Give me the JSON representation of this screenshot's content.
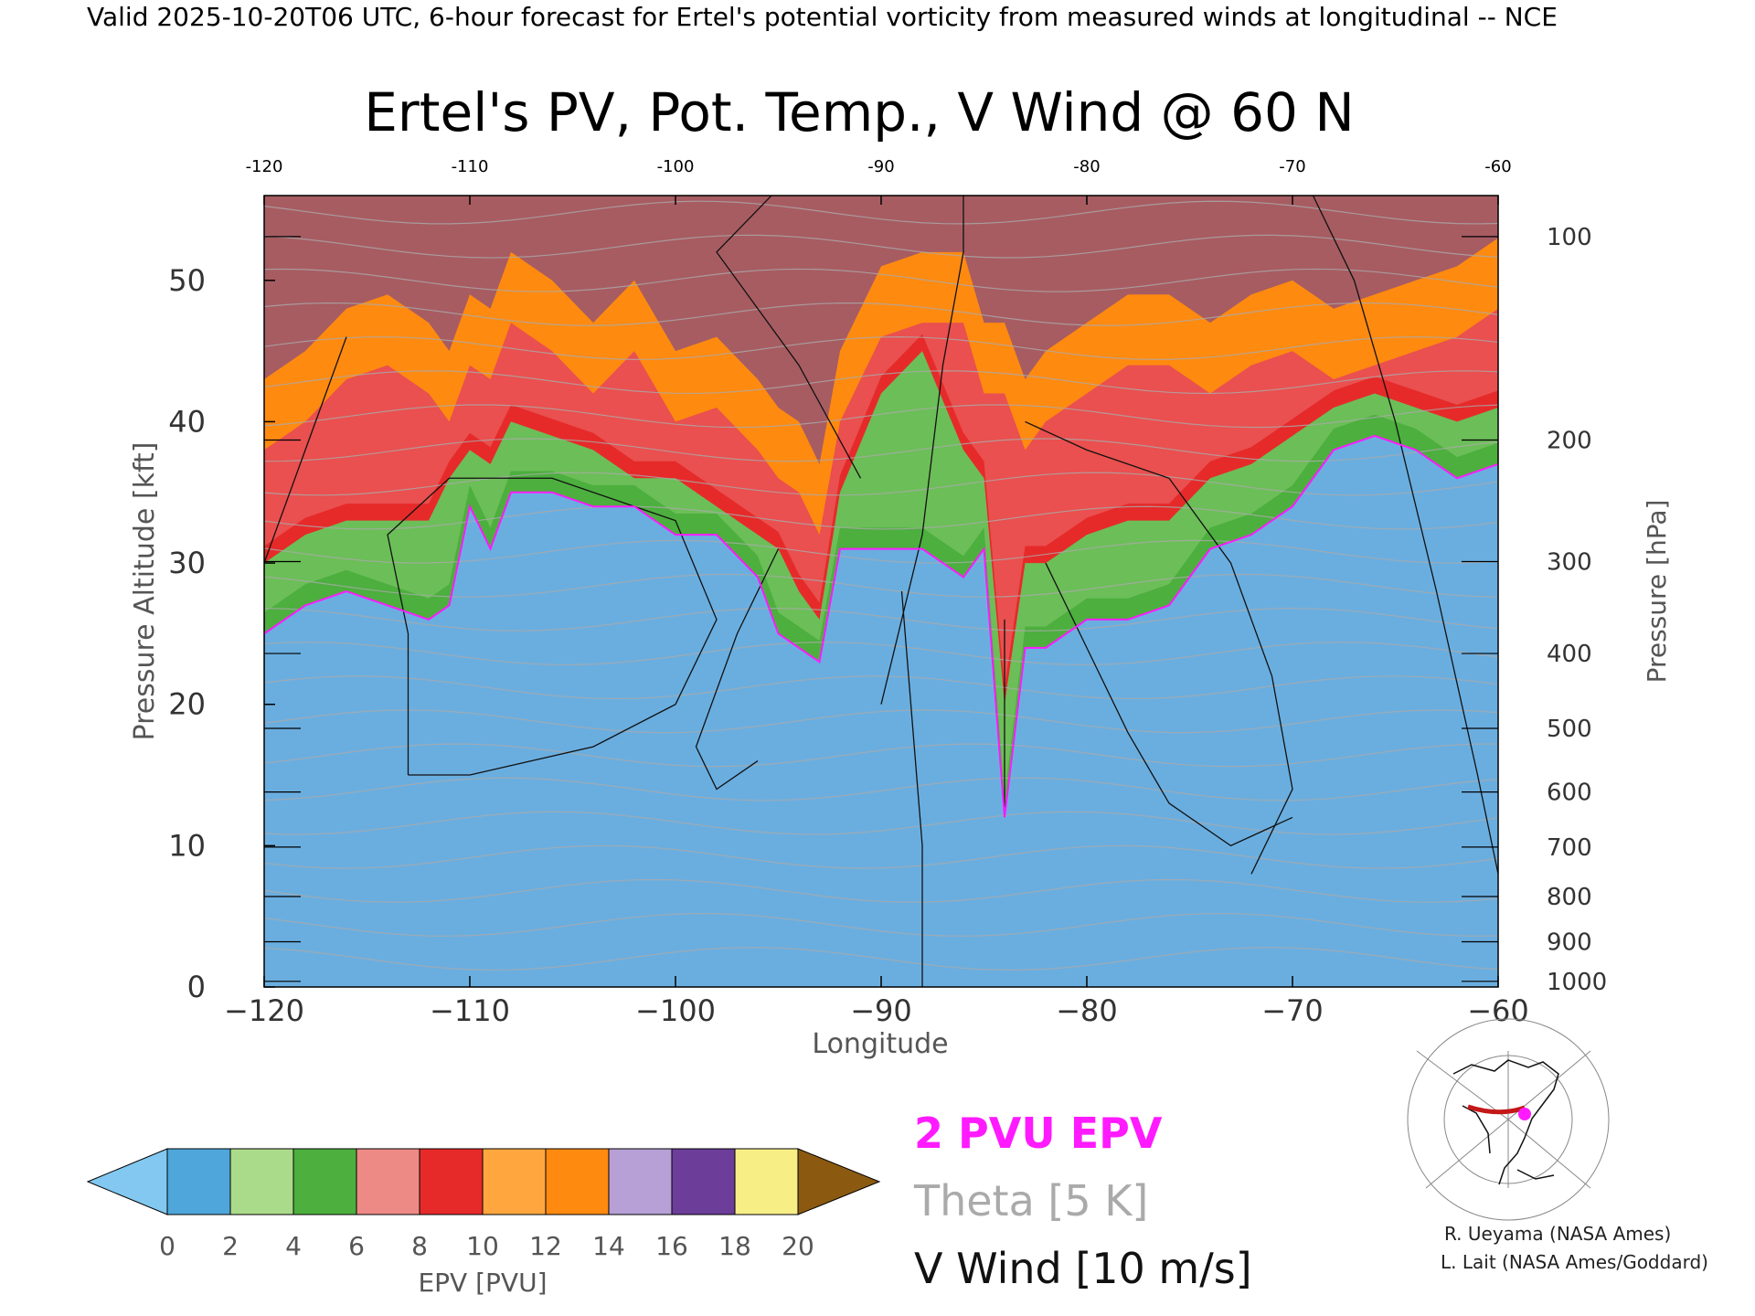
{
  "header": {
    "valid_line": "Valid 2025-10-20T06 UTC, 6-hour forecast for Ertel's potential vorticity from measured winds at longitudinal -- NCE"
  },
  "chart_data": {
    "type": "heatmap",
    "title": "Ertel's PV, Pot. Temp., V Wind @ 60 N",
    "xlabel": "Longitude",
    "ylabel_left": "Pressure Altitude [kft]",
    "ylabel_right": "Pressure [hPa]",
    "xlim": [
      -120,
      -60
    ],
    "ylim": [
      0,
      56
    ],
    "x_ticks": [
      -120,
      -110,
      -100,
      -90,
      -80,
      -70,
      -60
    ],
    "x_tick_labels": [
      "−120",
      "−110",
      "−100",
      "−90",
      "−80",
      "−70",
      "−60"
    ],
    "top_tick_labels": [
      "-120",
      "-110",
      "-100",
      "-90",
      "-80",
      "-70",
      "-60"
    ],
    "y_ticks_kft": [
      0,
      10,
      20,
      30,
      40,
      50
    ],
    "y_tick_labels": [
      "0",
      "10",
      "20",
      "30",
      "40",
      "50"
    ],
    "pressure_levels": [
      {
        "hPa": 1000,
        "kft": 0.4,
        "label": "1000"
      },
      {
        "hPa": 900,
        "kft": 3.2,
        "label": "900"
      },
      {
        "hPa": 800,
        "kft": 6.4,
        "label": "800"
      },
      {
        "hPa": 700,
        "kft": 9.9,
        "label": "700"
      },
      {
        "hPa": 600,
        "kft": 13.8,
        "label": "600"
      },
      {
        "hPa": 500,
        "kft": 18.3,
        "label": "500"
      },
      {
        "hPa": 400,
        "kft": 23.6,
        "label": "400"
      },
      {
        "hPa": 300,
        "kft": 30.1,
        "label": "300"
      },
      {
        "hPa": 200,
        "kft": 38.7,
        "label": "200"
      },
      {
        "hPa": 100,
        "kft": 53.1,
        "label": "100"
      }
    ],
    "epv_2pvu_line": {
      "x": [
        -120,
        -118,
        -116,
        -114,
        -112,
        -111,
        -110,
        -109,
        -108,
        -106,
        -104,
        -102,
        -100,
        -98,
        -96,
        -95,
        -94,
        -93,
        -92,
        -90,
        -88,
        -86,
        -85,
        -84,
        -83,
        -82,
        -80,
        -78,
        -76,
        -74,
        -72,
        -70,
        -68,
        -66,
        -64,
        -62,
        -60
      ],
      "y": [
        25,
        27,
        28,
        27,
        26,
        27,
        34,
        31,
        35,
        35,
        34,
        34,
        32,
        32,
        29,
        25,
        24,
        23,
        31,
        31,
        31,
        29,
        31,
        12,
        24,
        24,
        26,
        26,
        27,
        31,
        32,
        34,
        38,
        39,
        38,
        36,
        37
      ]
    },
    "epv_boundaries_kft": {
      "green_top": [
        30,
        32,
        33,
        33,
        33,
        36,
        38,
        37,
        40,
        39,
        38,
        36,
        36,
        34,
        32,
        31,
        28,
        26,
        35,
        42,
        45,
        38,
        36,
        20,
        30,
        30,
        32,
        33,
        33,
        36,
        37,
        39,
        41,
        42,
        41,
        40,
        41
      ],
      "red_top": [
        38,
        40,
        43,
        44,
        42,
        40,
        44,
        43,
        47,
        45,
        42,
        45,
        40,
        41,
        38,
        36,
        35,
        32,
        40,
        46,
        47,
        47,
        42,
        42,
        38,
        40,
        42,
        44,
        44,
        42,
        44,
        45,
        43,
        44,
        45,
        46,
        48
      ]
    },
    "colorbar": {
      "label": "EPV [PVU]",
      "levels": [
        0,
        2,
        4,
        6,
        8,
        10,
        12,
        14,
        16,
        18,
        20
      ],
      "tick_labels": [
        "0",
        "2",
        "4",
        "6",
        "8",
        "10",
        "12",
        "14",
        "16",
        "18",
        "20"
      ],
      "colors": [
        "#4ea6da",
        "#aadb8a",
        "#4caf3e",
        "#ee8a86",
        "#e62a2a",
        "#ffa73e",
        "#ff8a10",
        "#b6a0d6",
        "#6c3e9a",
        "#f7ef86"
      ],
      "under_color": "#82c8f0",
      "over_color": "#8b5a10"
    },
    "legend": [
      {
        "label": "2 PVU EPV",
        "color": "#ff1aff"
      },
      {
        "label": "Theta [5 K]",
        "color": "#aaaaaa"
      },
      {
        "label": "V Wind [10 m/s]",
        "color": "#111111"
      }
    ],
    "credits": [
      "R. Ueyama (NASA Ames)",
      "L. Lait (NASA Ames/Goddard)"
    ],
    "grid": false
  }
}
